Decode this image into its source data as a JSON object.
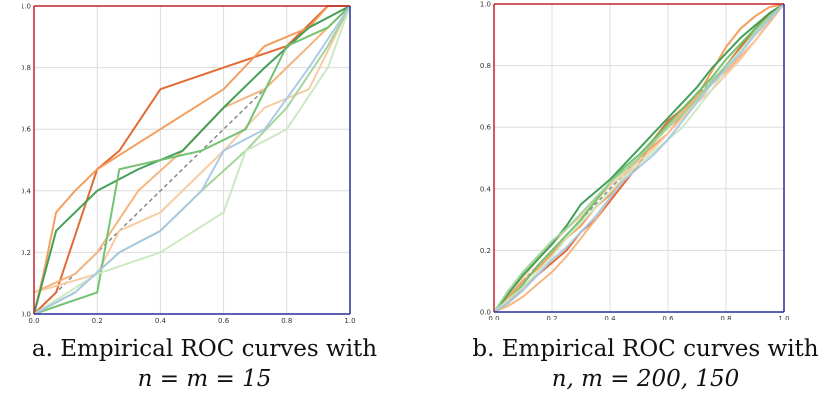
{
  "chart_data": [
    {
      "type": "line",
      "caption_line1": "a. Empirical ROC curves with",
      "caption_line2": "n = m = 15",
      "xlim": [
        0,
        1
      ],
      "ylim": [
        0,
        1
      ],
      "x_ticks": [
        "0.0",
        "0.2",
        "0.4",
        "0.6",
        "0.8",
        "1.0"
      ],
      "y_ticks": [
        "0.0",
        "0.2",
        "0.4",
        "0.6",
        "0.8",
        "1.0"
      ],
      "grid": true,
      "reference_line": {
        "x": [
          0,
          1
        ],
        "y": [
          0,
          1
        ],
        "style": "dashed",
        "color": "#888888"
      },
      "series": [
        {
          "color": "#e0622a",
          "x": [
            0,
            0.07,
            0.2,
            0.27,
            0.4,
            0.6,
            0.8,
            0.93,
            1
          ],
          "y": [
            0,
            0.07,
            0.47,
            0.53,
            0.73,
            0.8,
            0.87,
            1,
            1
          ]
        },
        {
          "color": "#f39a55",
          "x": [
            0,
            0.03,
            0.07,
            0.13,
            0.2,
            0.4,
            0.6,
            0.73,
            0.87,
            0.93,
            1
          ],
          "y": [
            0,
            0.13,
            0.33,
            0.4,
            0.47,
            0.6,
            0.73,
            0.87,
            0.93,
            1,
            1
          ]
        },
        {
          "color": "#f5b27a",
          "x": [
            0,
            0.13,
            0.2,
            0.33,
            0.47,
            0.6,
            0.73,
            0.87,
            1
          ],
          "y": [
            0.07,
            0.13,
            0.2,
            0.4,
            0.53,
            0.67,
            0.73,
            0.87,
            1
          ]
        },
        {
          "color": "#f7c9a0",
          "x": [
            0,
            0.2,
            0.27,
            0.4,
            0.6,
            0.73,
            0.87,
            1
          ],
          "y": [
            0.07,
            0.13,
            0.27,
            0.33,
            0.53,
            0.67,
            0.73,
            1
          ]
        },
        {
          "color": "#3a9a4f",
          "x": [
            0,
            0.07,
            0.2,
            0.33,
            0.47,
            0.6,
            0.73,
            0.87,
            1
          ],
          "y": [
            0,
            0.27,
            0.4,
            0.47,
            0.53,
            0.67,
            0.8,
            0.93,
            1
          ]
        },
        {
          "color": "#6cc06a",
          "x": [
            0,
            0.2,
            0.27,
            0.53,
            0.67,
            0.8,
            0.93,
            1
          ],
          "y": [
            0,
            0.07,
            0.47,
            0.53,
            0.6,
            0.87,
            0.93,
            1
          ]
        },
        {
          "color": "#9fd396",
          "x": [
            0,
            0.13,
            0.27,
            0.4,
            0.53,
            0.67,
            0.8,
            0.93,
            1
          ],
          "y": [
            0,
            0.07,
            0.2,
            0.27,
            0.4,
            0.53,
            0.67,
            0.87,
            1
          ]
        },
        {
          "color": "#c9e8c0",
          "x": [
            0,
            0.2,
            0.4,
            0.6,
            0.67,
            0.8,
            0.93,
            1
          ],
          "y": [
            0,
            0.13,
            0.2,
            0.33,
            0.53,
            0.6,
            0.8,
            1
          ]
        },
        {
          "color": "#a9c7e6",
          "x": [
            0,
            0.13,
            0.27,
            0.4,
            0.53,
            0.6,
            0.73,
            0.87,
            1
          ],
          "y": [
            0,
            0.07,
            0.2,
            0.27,
            0.4,
            0.53,
            0.6,
            0.8,
            1
          ]
        }
      ]
    },
    {
      "type": "line",
      "caption_line1": "b. Empirical ROC curves with",
      "caption_line2": "n, m = 200, 150",
      "xlim": [
        0,
        1
      ],
      "ylim": [
        0,
        1
      ],
      "x_ticks": [
        "0.0",
        "0.2",
        "0.4",
        "0.6",
        "0.8",
        "1.0"
      ],
      "y_ticks": [
        "0.0",
        "0.2",
        "0.4",
        "0.6",
        "0.8",
        "1.0"
      ],
      "grid": true,
      "reference_line": {
        "x": [
          0,
          1
        ],
        "y": [
          0,
          1
        ],
        "style": "dashed",
        "color": "#888888"
      },
      "series": [
        {
          "color": "#e0622a",
          "x": [
            0,
            0.05,
            0.1,
            0.15,
            0.2,
            0.25,
            0.3,
            0.35,
            0.4,
            0.45,
            0.5,
            0.55,
            0.6,
            0.65,
            0.7,
            0.75,
            0.8,
            0.85,
            0.9,
            0.95,
            1
          ],
          "y": [
            0,
            0.03,
            0.08,
            0.12,
            0.16,
            0.2,
            0.26,
            0.3,
            0.36,
            0.42,
            0.48,
            0.56,
            0.62,
            0.66,
            0.7,
            0.74,
            0.8,
            0.86,
            0.92,
            0.97,
            1
          ]
        },
        {
          "color": "#f39a55",
          "x": [
            0,
            0.05,
            0.1,
            0.15,
            0.2,
            0.25,
            0.3,
            0.35,
            0.4,
            0.45,
            0.5,
            0.55,
            0.6,
            0.65,
            0.7,
            0.75,
            0.8,
            0.85,
            0.9,
            0.95,
            1
          ],
          "y": [
            0,
            0.05,
            0.1,
            0.14,
            0.19,
            0.24,
            0.28,
            0.34,
            0.38,
            0.44,
            0.5,
            0.54,
            0.58,
            0.64,
            0.7,
            0.78,
            0.86,
            0.92,
            0.96,
            0.99,
            1
          ]
        },
        {
          "color": "#f5b27a",
          "x": [
            0,
            0.05,
            0.1,
            0.15,
            0.2,
            0.25,
            0.3,
            0.35,
            0.4,
            0.45,
            0.5,
            0.55,
            0.6,
            0.65,
            0.7,
            0.75,
            0.8,
            0.85,
            0.9,
            0.95,
            1
          ],
          "y": [
            0,
            0.02,
            0.05,
            0.09,
            0.13,
            0.18,
            0.24,
            0.3,
            0.37,
            0.44,
            0.5,
            0.55,
            0.6,
            0.65,
            0.7,
            0.74,
            0.78,
            0.83,
            0.88,
            0.94,
            1
          ]
        },
        {
          "color": "#f7c9a0",
          "x": [
            0,
            0.05,
            0.1,
            0.15,
            0.2,
            0.25,
            0.3,
            0.35,
            0.4,
            0.45,
            0.5,
            0.55,
            0.6,
            0.65,
            0.7,
            0.75,
            0.8,
            0.85,
            0.9,
            0.95,
            1
          ],
          "y": [
            0,
            0.06,
            0.11,
            0.17,
            0.22,
            0.27,
            0.31,
            0.36,
            0.41,
            0.45,
            0.49,
            0.53,
            0.58,
            0.63,
            0.68,
            0.72,
            0.77,
            0.82,
            0.88,
            0.95,
            1
          ]
        },
        {
          "color": "#3a9a4f",
          "x": [
            0,
            0.05,
            0.1,
            0.15,
            0.2,
            0.25,
            0.3,
            0.35,
            0.4,
            0.45,
            0.5,
            0.55,
            0.6,
            0.65,
            0.7,
            0.75,
            0.8,
            0.85,
            0.9,
            0.95,
            1
          ],
          "y": [
            0,
            0.06,
            0.12,
            0.17,
            0.22,
            0.28,
            0.35,
            0.39,
            0.43,
            0.48,
            0.53,
            0.58,
            0.63,
            0.68,
            0.73,
            0.79,
            0.84,
            0.89,
            0.93,
            0.97,
            1
          ]
        },
        {
          "color": "#6cc06a",
          "x": [
            0,
            0.05,
            0.1,
            0.15,
            0.2,
            0.25,
            0.3,
            0.35,
            0.4,
            0.45,
            0.5,
            0.55,
            0.6,
            0.65,
            0.7,
            0.75,
            0.8,
            0.85,
            0.9,
            0.95,
            1
          ],
          "y": [
            0,
            0.04,
            0.09,
            0.15,
            0.2,
            0.25,
            0.3,
            0.36,
            0.42,
            0.47,
            0.51,
            0.56,
            0.61,
            0.66,
            0.71,
            0.76,
            0.82,
            0.87,
            0.92,
            0.96,
            1
          ]
        },
        {
          "color": "#9fd396",
          "x": [
            0,
            0.05,
            0.1,
            0.15,
            0.2,
            0.25,
            0.3,
            0.35,
            0.4,
            0.45,
            0.5,
            0.55,
            0.6,
            0.65,
            0.7,
            0.75,
            0.8,
            0.85,
            0.9,
            0.95,
            1
          ],
          "y": [
            0,
            0.07,
            0.13,
            0.18,
            0.23,
            0.27,
            0.32,
            0.37,
            0.42,
            0.46,
            0.5,
            0.55,
            0.6,
            0.64,
            0.69,
            0.75,
            0.8,
            0.85,
            0.91,
            0.96,
            1
          ]
        },
        {
          "color": "#c9e8c0",
          "x": [
            0,
            0.05,
            0.1,
            0.15,
            0.2,
            0.25,
            0.3,
            0.35,
            0.4,
            0.45,
            0.5,
            0.55,
            0.6,
            0.65,
            0.7,
            0.75,
            0.8,
            0.85,
            0.9,
            0.95,
            1
          ],
          "y": [
            0,
            0.04,
            0.08,
            0.13,
            0.18,
            0.24,
            0.29,
            0.34,
            0.39,
            0.44,
            0.48,
            0.52,
            0.56,
            0.6,
            0.66,
            0.72,
            0.79,
            0.85,
            0.9,
            0.95,
            1
          ]
        },
        {
          "color": "#a9c7e6",
          "x": [
            0,
            0.05,
            0.1,
            0.15,
            0.2,
            0.25,
            0.3,
            0.35,
            0.4,
            0.45,
            0.5,
            0.55,
            0.6,
            0.65,
            0.7,
            0.75,
            0.8,
            0.85,
            0.9,
            0.95,
            1
          ],
          "y": [
            0,
            0.03,
            0.07,
            0.12,
            0.17,
            0.21,
            0.26,
            0.31,
            0.37,
            0.43,
            0.47,
            0.51,
            0.56,
            0.62,
            0.68,
            0.74,
            0.79,
            0.84,
            0.9,
            0.95,
            1
          ]
        }
      ]
    }
  ]
}
